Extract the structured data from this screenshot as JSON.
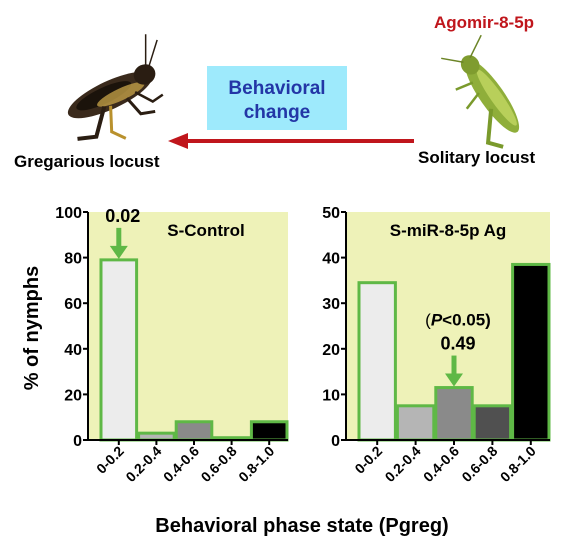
{
  "header": {
    "treatment_label": "Agomir-8-5p",
    "arrow_label_line1": "Behavioral",
    "arrow_label_line2": "change",
    "gregarious_label": "Gregarious locust",
    "solitary_label": "Solitary locust"
  },
  "colors": {
    "panel_bg": "#eef2b8",
    "bar_outline": "#5fb846",
    "arrow_red": "#c0161c",
    "treatment_red": "#c0161c",
    "box_bg": "#9eeafc",
    "box_text": "#2336a6",
    "bar_fills": [
      "#ececec",
      "#b5b5b5",
      "#8a8a8a",
      "#505050",
      "#000000"
    ]
  },
  "shared": {
    "ylabel": "% of nymphs",
    "xlabel": "Behavioral phase state (Pgreg)"
  },
  "chart_data": [
    {
      "type": "bar",
      "title": "S-Control",
      "categories": [
        "0-0.2",
        "0.2-0.4",
        "0.4-0.6",
        "0.6-0.8",
        "0.8-1.0"
      ],
      "values": [
        79,
        3,
        8,
        1,
        8
      ],
      "ylim": [
        0,
        100
      ],
      "yticks": [
        "0",
        "20",
        "40",
        "60",
        "80",
        "100"
      ],
      "annotation": {
        "text": "0.02",
        "category_index": 0
      }
    },
    {
      "type": "bar",
      "title": "S-miR-8-5p Ag",
      "categories": [
        "0-0.2",
        "0.2-0.4",
        "0.4-0.6",
        "0.6-0.8",
        "0.8-1.0"
      ],
      "values": [
        34.5,
        7.5,
        11.5,
        7.5,
        38.5
      ],
      "ylim": [
        0,
        50
      ],
      "yticks": [
        "0",
        "10",
        "20",
        "30",
        "40",
        "50"
      ],
      "annotation": {
        "text": "0.49",
        "category_index": 2,
        "p_prefix": "(",
        "p_letter": "P",
        "p_suffix": "<0.05)"
      }
    }
  ]
}
